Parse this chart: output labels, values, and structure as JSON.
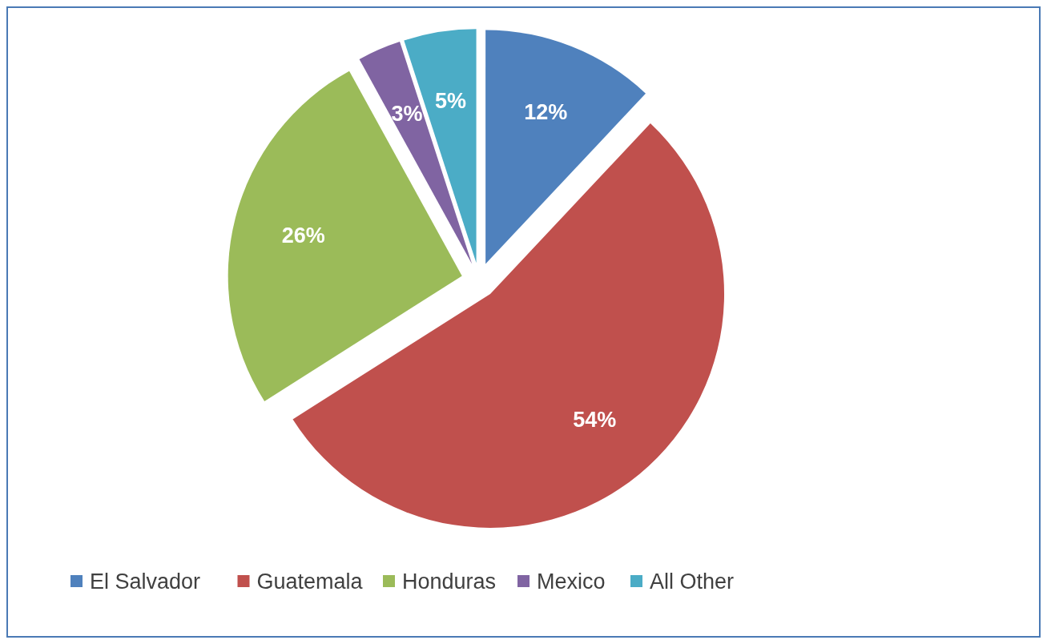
{
  "chart_data": {
    "type": "pie",
    "categories": [
      "El Salvador",
      "Guatemala",
      "Honduras",
      "Mexico",
      "All Other"
    ],
    "values": [
      12,
      54,
      26,
      3,
      5
    ],
    "colors": [
      "#4f81bd",
      "#c0504d",
      "#9bbb59",
      "#8064a2",
      "#4bacc6"
    ],
    "value_labels": [
      "12%",
      "54%",
      "26%",
      "3%",
      "5%"
    ],
    "legend": "bottom"
  }
}
